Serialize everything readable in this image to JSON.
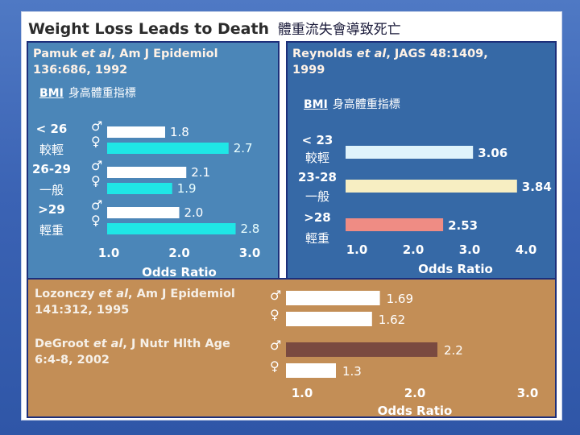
{
  "title_en": "Weight Loss Leads to Death",
  "title_zh": "體重流失會導致死亡",
  "colors": {
    "background": "#3b63b4",
    "pamuk_panel": "#4b86b8",
    "reynolds_panel": "#3669a6",
    "bottom_panel": "#c38e56",
    "male_bar": "#ffffff",
    "female_bar": "#1fe6e6",
    "bar_light": "#dff3fb",
    "bar_cream": "#f7eec2",
    "bar_salmon": "#ef8c84",
    "bar_brown": "#7a4a40",
    "bar_white": "#ffffff"
  },
  "symbols": {
    "male": "♂",
    "female": "♀",
    "male_icon": "male-symbol-icon",
    "female_icon": "female-symbol-icon"
  },
  "pamuk": {
    "ref_line1_a": "Pamuk ",
    "ref_line1_b": "et al",
    "ref_line1_c": ", Am J Epidemiol",
    "ref_line2": "136:686, 1992",
    "bmi_label": "BMI",
    "bmi_zh": "身高體重指標",
    "groups": [
      {
        "range": "< 26",
        "zh": "較輕"
      },
      {
        "range": "26-29",
        "zh": "一般"
      },
      {
        "range": ">29",
        "zh": "輕重"
      }
    ]
  },
  "reynolds": {
    "ref_line1_a": "Reynolds ",
    "ref_line1_b": "et al",
    "ref_line1_c": ", JAGS 48:1409,",
    "ref_line2": "1999",
    "bmi_label": "BMI",
    "bmi_zh": "身高體重指標",
    "groups": [
      {
        "range": "< 23",
        "zh": "較輕"
      },
      {
        "range": "23-28",
        "zh": "一般"
      },
      {
        "range": ">28",
        "zh": "輕重"
      }
    ]
  },
  "lozonczy": {
    "ref_line1_a": "Lozonczy ",
    "ref_line1_b": "et al",
    "ref_line1_c": ", Am J Epidemiol",
    "ref_line2": "141:312, 1995"
  },
  "degroot": {
    "ref_line1_a": "DeGroot ",
    "ref_line1_b": "et al",
    "ref_line1_c": ", J Nutr Hlth Age",
    "ref_line2": "6:4-8, 2002"
  },
  "chart_data": [
    {
      "id": "pamuk",
      "type": "bar",
      "orientation": "horizontal",
      "categories": [
        "< 26",
        "26-29",
        ">29"
      ],
      "series": [
        {
          "name": "♂",
          "values": [
            1.8,
            2.1,
            2.0
          ],
          "labels": [
            "1.8",
            "2.1",
            "2.0"
          ]
        },
        {
          "name": "♀",
          "values": [
            2.7,
            1.9,
            2.8
          ],
          "labels": [
            "2.7",
            "1.9",
            "2.8"
          ]
        }
      ],
      "xlabel": "Odds Ratio",
      "xlim": [
        1.0,
        3.0
      ],
      "xticks": [
        "1.0",
        "2.0",
        "3.0"
      ],
      "xtick_values": [
        1.0,
        2.0,
        3.0
      ]
    },
    {
      "id": "reynolds",
      "type": "bar",
      "orientation": "horizontal",
      "categories": [
        "< 23",
        "23-28",
        ">28"
      ],
      "values": [
        3.06,
        3.84,
        2.53
      ],
      "labels": [
        "3.06",
        "3.84",
        "2.53"
      ],
      "xlabel": "Odds Ratio",
      "xlim": [
        1.0,
        4.0
      ],
      "xticks": [
        "1.0",
        "2.0",
        "3.0",
        "4.0"
      ],
      "xtick_values": [
        1.0,
        2.0,
        3.0,
        4.0
      ]
    },
    {
      "id": "lozonczy_degroot",
      "type": "bar",
      "orientation": "horizontal",
      "categories": [
        "Lozonczy ♂",
        "Lozonczy ♀",
        "DeGroot ♂",
        "DeGroot ♀"
      ],
      "values": [
        1.69,
        1.62,
        2.2,
        1.3
      ],
      "labels": [
        "1.69",
        "1.62",
        "2.2",
        "1.3"
      ],
      "xlabel": "Odds Ratio",
      "xlim": [
        1.0,
        3.0
      ],
      "xticks": [
        "1.0",
        "2.0",
        "3.0"
      ],
      "xtick_values": [
        1.0,
        2.0,
        3.0
      ]
    }
  ]
}
